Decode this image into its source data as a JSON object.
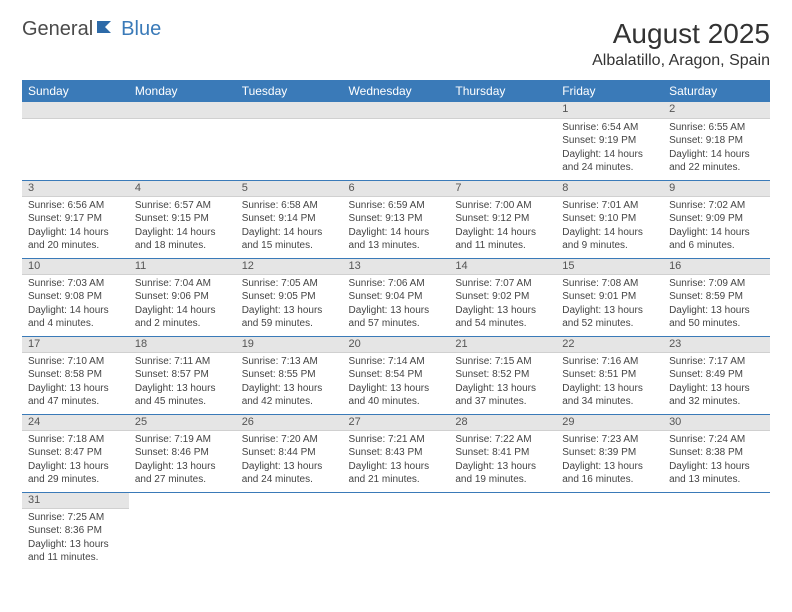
{
  "logo": {
    "part1": "General",
    "part2": "Blue"
  },
  "title": "August 2025",
  "location": "Albalatillo, Aragon, Spain",
  "colors": {
    "header_bg": "#3a7ab8",
    "header_text": "#ffffff",
    "daynum_bg": "#e5e5e5",
    "cell_border": "#3a7ab8",
    "body_text": "#444444",
    "logo_gray": "#4a4a4a",
    "logo_blue": "#3a7ab8"
  },
  "weekdays": [
    "Sunday",
    "Monday",
    "Tuesday",
    "Wednesday",
    "Thursday",
    "Friday",
    "Saturday"
  ],
  "weeks": [
    [
      null,
      null,
      null,
      null,
      null,
      {
        "n": "1",
        "sr": "6:54 AM",
        "ss": "9:19 PM",
        "dl": "14 hours and 24 minutes."
      },
      {
        "n": "2",
        "sr": "6:55 AM",
        "ss": "9:18 PM",
        "dl": "14 hours and 22 minutes."
      }
    ],
    [
      {
        "n": "3",
        "sr": "6:56 AM",
        "ss": "9:17 PM",
        "dl": "14 hours and 20 minutes."
      },
      {
        "n": "4",
        "sr": "6:57 AM",
        "ss": "9:15 PM",
        "dl": "14 hours and 18 minutes."
      },
      {
        "n": "5",
        "sr": "6:58 AM",
        "ss": "9:14 PM",
        "dl": "14 hours and 15 minutes."
      },
      {
        "n": "6",
        "sr": "6:59 AM",
        "ss": "9:13 PM",
        "dl": "14 hours and 13 minutes."
      },
      {
        "n": "7",
        "sr": "7:00 AM",
        "ss": "9:12 PM",
        "dl": "14 hours and 11 minutes."
      },
      {
        "n": "8",
        "sr": "7:01 AM",
        "ss": "9:10 PM",
        "dl": "14 hours and 9 minutes."
      },
      {
        "n": "9",
        "sr": "7:02 AM",
        "ss": "9:09 PM",
        "dl": "14 hours and 6 minutes."
      }
    ],
    [
      {
        "n": "10",
        "sr": "7:03 AM",
        "ss": "9:08 PM",
        "dl": "14 hours and 4 minutes."
      },
      {
        "n": "11",
        "sr": "7:04 AM",
        "ss": "9:06 PM",
        "dl": "14 hours and 2 minutes."
      },
      {
        "n": "12",
        "sr": "7:05 AM",
        "ss": "9:05 PM",
        "dl": "13 hours and 59 minutes."
      },
      {
        "n": "13",
        "sr": "7:06 AM",
        "ss": "9:04 PM",
        "dl": "13 hours and 57 minutes."
      },
      {
        "n": "14",
        "sr": "7:07 AM",
        "ss": "9:02 PM",
        "dl": "13 hours and 54 minutes."
      },
      {
        "n": "15",
        "sr": "7:08 AM",
        "ss": "9:01 PM",
        "dl": "13 hours and 52 minutes."
      },
      {
        "n": "16",
        "sr": "7:09 AM",
        "ss": "8:59 PM",
        "dl": "13 hours and 50 minutes."
      }
    ],
    [
      {
        "n": "17",
        "sr": "7:10 AM",
        "ss": "8:58 PM",
        "dl": "13 hours and 47 minutes."
      },
      {
        "n": "18",
        "sr": "7:11 AM",
        "ss": "8:57 PM",
        "dl": "13 hours and 45 minutes."
      },
      {
        "n": "19",
        "sr": "7:13 AM",
        "ss": "8:55 PM",
        "dl": "13 hours and 42 minutes."
      },
      {
        "n": "20",
        "sr": "7:14 AM",
        "ss": "8:54 PM",
        "dl": "13 hours and 40 minutes."
      },
      {
        "n": "21",
        "sr": "7:15 AM",
        "ss": "8:52 PM",
        "dl": "13 hours and 37 minutes."
      },
      {
        "n": "22",
        "sr": "7:16 AM",
        "ss": "8:51 PM",
        "dl": "13 hours and 34 minutes."
      },
      {
        "n": "23",
        "sr": "7:17 AM",
        "ss": "8:49 PM",
        "dl": "13 hours and 32 minutes."
      }
    ],
    [
      {
        "n": "24",
        "sr": "7:18 AM",
        "ss": "8:47 PM",
        "dl": "13 hours and 29 minutes."
      },
      {
        "n": "25",
        "sr": "7:19 AM",
        "ss": "8:46 PM",
        "dl": "13 hours and 27 minutes."
      },
      {
        "n": "26",
        "sr": "7:20 AM",
        "ss": "8:44 PM",
        "dl": "13 hours and 24 minutes."
      },
      {
        "n": "27",
        "sr": "7:21 AM",
        "ss": "8:43 PM",
        "dl": "13 hours and 21 minutes."
      },
      {
        "n": "28",
        "sr": "7:22 AM",
        "ss": "8:41 PM",
        "dl": "13 hours and 19 minutes."
      },
      {
        "n": "29",
        "sr": "7:23 AM",
        "ss": "8:39 PM",
        "dl": "13 hours and 16 minutes."
      },
      {
        "n": "30",
        "sr": "7:24 AM",
        "ss": "8:38 PM",
        "dl": "13 hours and 13 minutes."
      }
    ],
    [
      {
        "n": "31",
        "sr": "7:25 AM",
        "ss": "8:36 PM",
        "dl": "13 hours and 11 minutes."
      },
      null,
      null,
      null,
      null,
      null,
      null
    ]
  ],
  "labels": {
    "sunrise": "Sunrise:",
    "sunset": "Sunset:",
    "daylight": "Daylight:"
  }
}
